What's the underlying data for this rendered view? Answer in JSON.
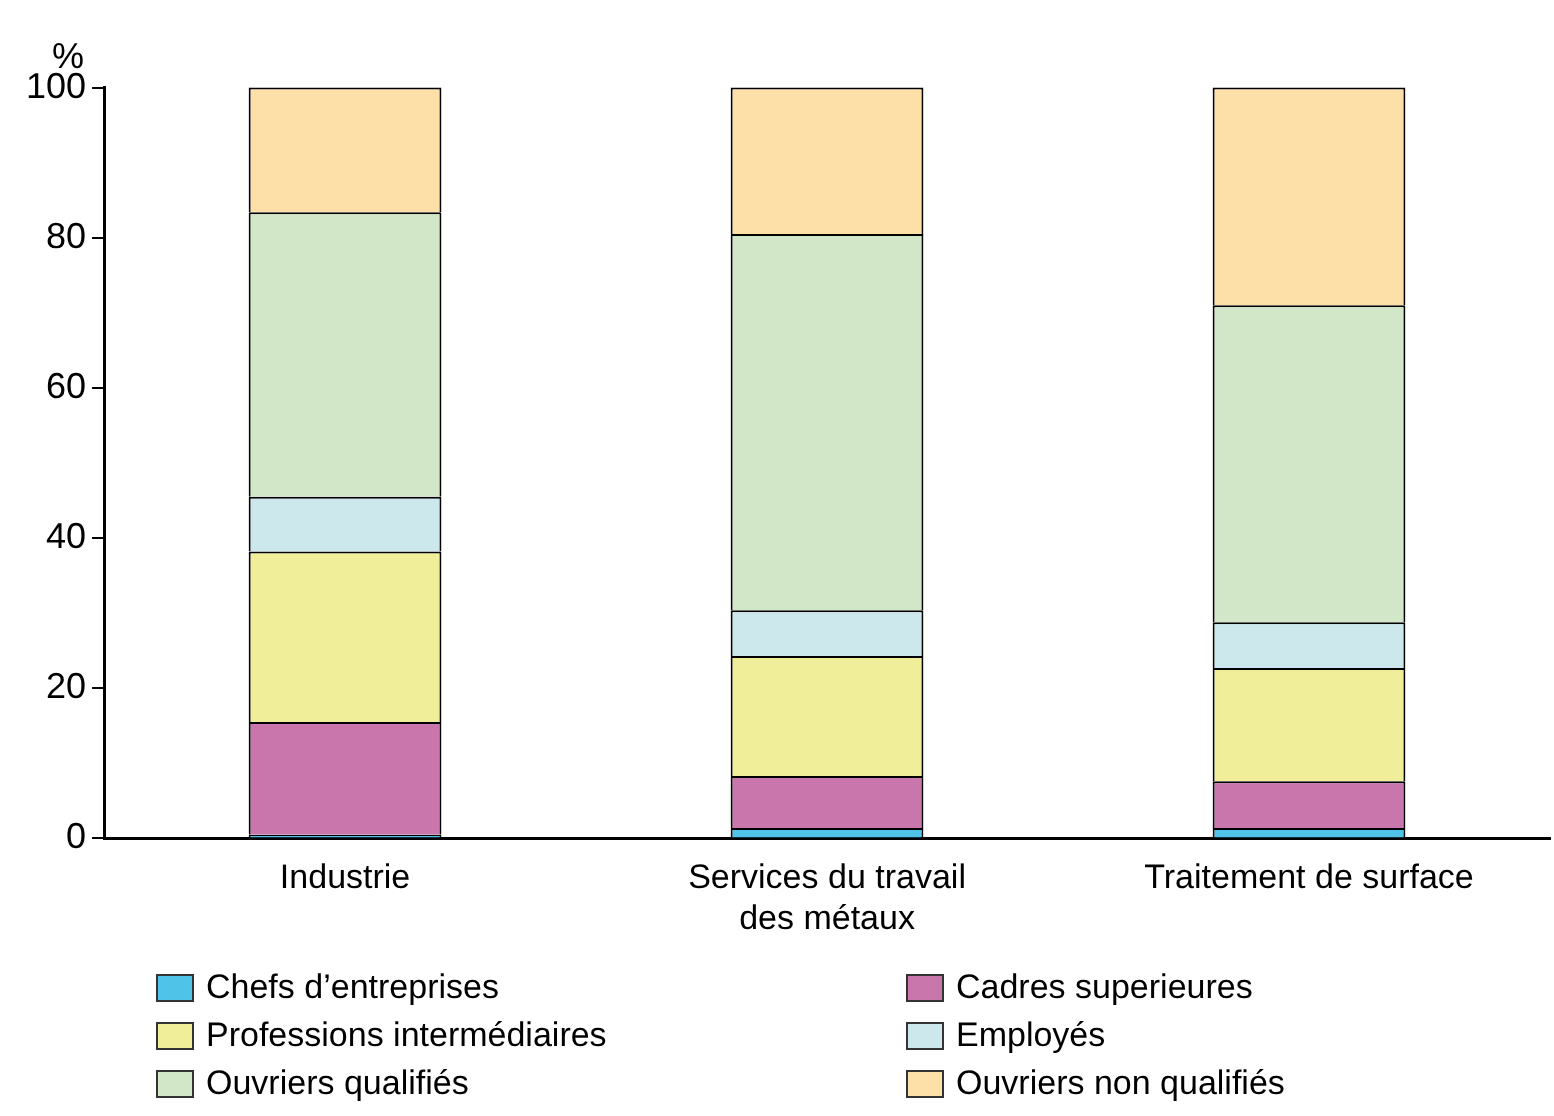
{
  "chart_data": {
    "type": "bar",
    "stacked": true,
    "ylabel": "%",
    "categories": [
      "Industrie",
      "Services du travail des métaux",
      "Traitement de surface"
    ],
    "series": [
      {
        "name": "Chefs d’entreprises",
        "color": "#4fc3e8",
        "values": [
          0.5,
          1.4,
          1.4
        ]
      },
      {
        "name": "Cadres superieures",
        "color": "#c876ab",
        "values": [
          15.0,
          6.9,
          6.2
        ]
      },
      {
        "name": "Professions intermédiaires",
        "color": "#f0ee98",
        "values": [
          22.7,
          16.0,
          15.1
        ]
      },
      {
        "name": "Employés",
        "color": "#cce8ec",
        "values": [
          7.3,
          6.1,
          6.1
        ]
      },
      {
        "name": "Ouvriers qualifiés",
        "color": "#d2e7c8",
        "values": [
          37.9,
          50.1,
          42.2
        ]
      },
      {
        "name": "Ouvriers non qualifiés",
        "color": "#fde0a8",
        "values": [
          16.6,
          19.5,
          29.0
        ]
      }
    ],
    "ylim": [
      0,
      100
    ],
    "yticks": [
      0,
      20,
      40,
      60,
      80,
      100
    ],
    "grid": false,
    "legend": "bottom"
  }
}
